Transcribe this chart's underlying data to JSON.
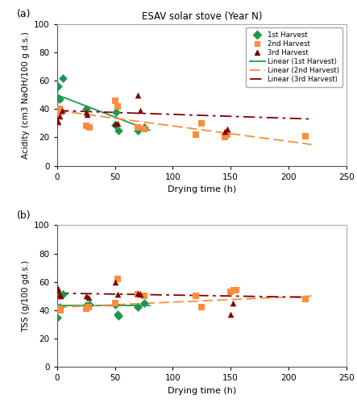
{
  "title": "ESAV solar stove (Year N)",
  "label_a": "(a)",
  "label_b": "(b)",
  "harvest1_color": "#1a9850",
  "harvest2_color": "#fd8d3c",
  "harvest3_color": "#800000",
  "acidity_h1_x": [
    0,
    1,
    2,
    5,
    25,
    50,
    51,
    53,
    70,
    75
  ],
  "acidity_h1_y": [
    48,
    56,
    47,
    62,
    40,
    29,
    38,
    25,
    25,
    27
  ],
  "acidity_h2_x": [
    0,
    1,
    2,
    3,
    25,
    28,
    50,
    52,
    70,
    75,
    120,
    125,
    145,
    147,
    215
  ],
  "acidity_h2_y": [
    38,
    39,
    40,
    38,
    28,
    27,
    46,
    42,
    27,
    26,
    22,
    30,
    20,
    22,
    21
  ],
  "acidity_h3_x": [
    0,
    1,
    2,
    4,
    25,
    26,
    50,
    52,
    70,
    72,
    145,
    147
  ],
  "acidity_h3_y": [
    32,
    31,
    35,
    39,
    38,
    36,
    30,
    30,
    50,
    39,
    24,
    26
  ],
  "acidity_line1_x": [
    0,
    80
  ],
  "acidity_line1_y": [
    50,
    25
  ],
  "acidity_line2_x": [
    0,
    220
  ],
  "acidity_line2_y": [
    39,
    15
  ],
  "acidity_line3_x": [
    0,
    220
  ],
  "acidity_line3_y": [
    39,
    33
  ],
  "tss_h1_x": [
    0,
    1,
    2,
    5,
    25,
    28,
    50,
    52,
    53,
    70,
    75
  ],
  "tss_h1_y": [
    35,
    41,
    42,
    51,
    43,
    44,
    44,
    37,
    36,
    42,
    45
  ],
  "tss_h2_x": [
    0,
    1,
    2,
    3,
    25,
    27,
    50,
    52,
    70,
    75,
    120,
    125,
    150,
    153,
    155,
    215
  ],
  "tss_h2_y": [
    40,
    41,
    41,
    40,
    41,
    42,
    45,
    62,
    51,
    50,
    50,
    42,
    53,
    54,
    54,
    48
  ],
  "tss_h3_x": [
    0,
    1,
    2,
    3,
    25,
    27,
    50,
    52,
    70,
    72,
    150,
    152
  ],
  "tss_h3_y": [
    54,
    55,
    51,
    50,
    50,
    49,
    60,
    51,
    52,
    51,
    37,
    45
  ],
  "tss_line1_x": [
    0,
    80
  ],
  "tss_line1_y": [
    43,
    43
  ],
  "tss_line2_x": [
    0,
    220
  ],
  "tss_line2_y": [
    42,
    50
  ],
  "tss_line3_x": [
    0,
    220
  ],
  "tss_line3_y": [
    52,
    49
  ],
  "xlabel": "Drying time (h)",
  "ylabel_a": "Acidity (cm3 NaOH/100 g d.s.)",
  "ylabel_b": "TSS (g/100 gd.s.)",
  "xlim": [
    0,
    250
  ],
  "ylim": [
    0,
    100
  ],
  "xticks": [
    0,
    50,
    100,
    150,
    200,
    250
  ],
  "yticks": [
    0,
    20,
    40,
    60,
    80,
    100
  ],
  "legend_entries_markers": [
    "1st Harvest",
    "2nd Harvest",
    "3rd Harvest"
  ],
  "legend_entries_lines": [
    "Linear (1st Harvest)",
    "Linear (2nd Harvest)",
    "Linear (3rd Harvest)"
  ]
}
